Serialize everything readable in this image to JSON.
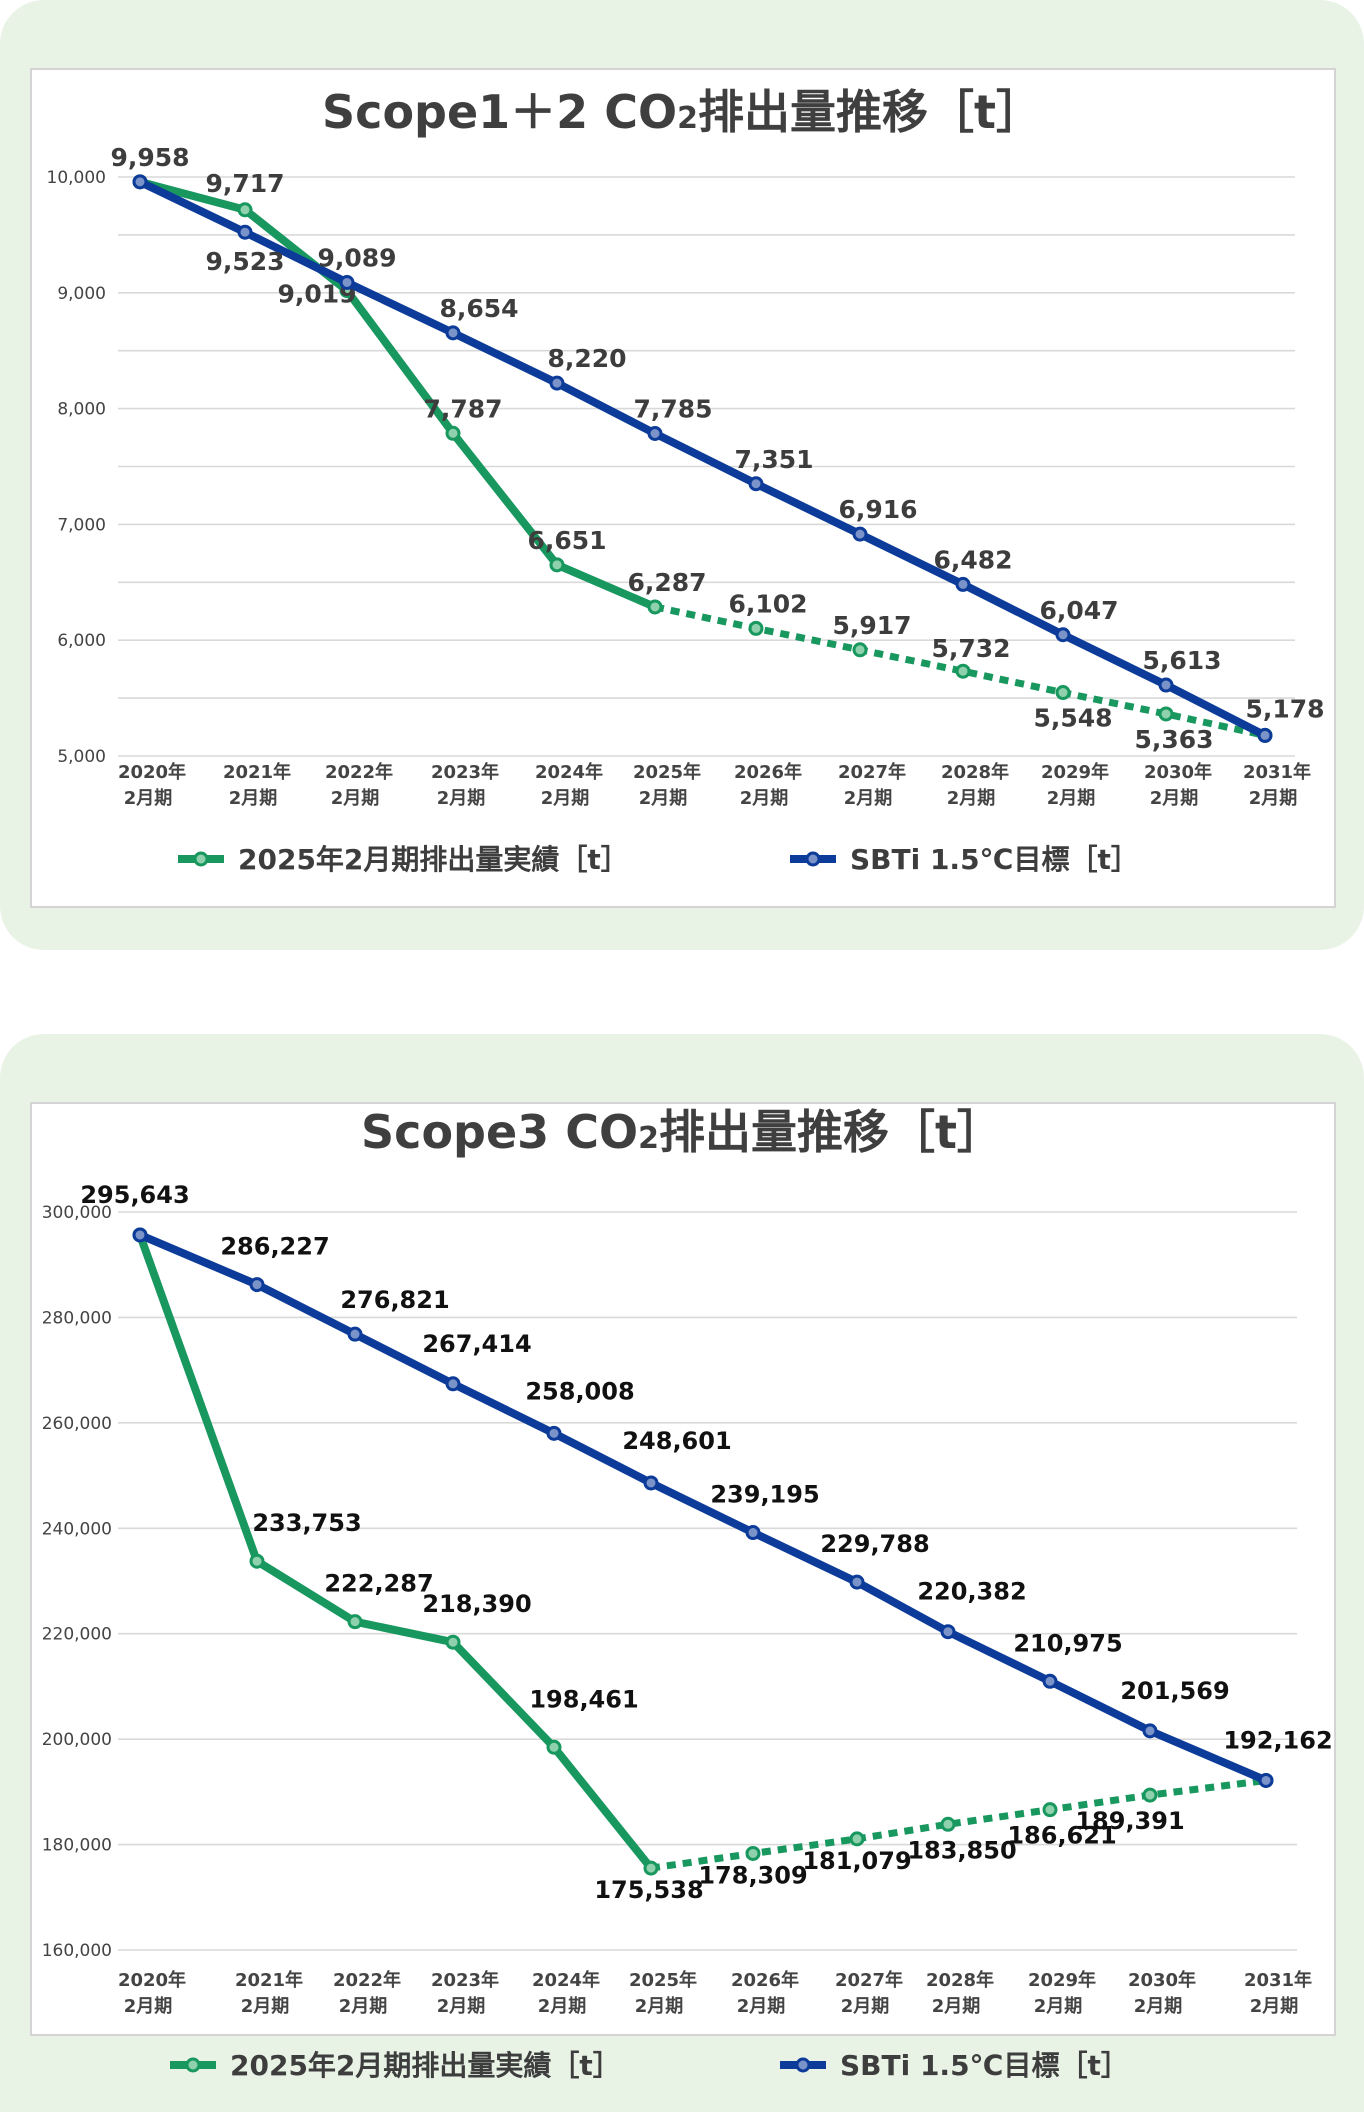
{
  "chart_data": [
    {
      "type": "line",
      "title": "Scope1＋2 CO",
      "title_sub": "2",
      "title_rest": "排出量推移［t］",
      "categories": [
        [
          "2020年",
          "2月期"
        ],
        [
          "2021年",
          "2月期"
        ],
        [
          "2022年",
          "2月期"
        ],
        [
          "2023年",
          "2月期"
        ],
        [
          "2024年",
          "2月期"
        ],
        [
          "2025年",
          "2月期"
        ],
        [
          "2026年",
          "2月期"
        ],
        [
          "2027年",
          "2月期"
        ],
        [
          "2028年",
          "2月期"
        ],
        [
          "2029年",
          "2月期"
        ],
        [
          "2030年",
          "2月期"
        ],
        [
          "2031年",
          "2月期"
        ]
      ],
      "ylim": [
        5000,
        10000
      ],
      "yticks": [
        "5,000",
        "6,000",
        "7,000",
        "8,000",
        "9,000",
        "10,000"
      ],
      "grid": true,
      "legend_position": "bottom",
      "series": [
        {
          "name": "2025年2月期排出量実績［t］",
          "color": "#18985f",
          "values": [
            9958,
            9717,
            9019,
            7787,
            6651,
            6287,
            6102,
            5917,
            5732,
            5548,
            5363,
            5178
          ],
          "labels": [
            "9,958",
            "9,717",
            "9,019",
            "7,787",
            "6,651",
            "6,287",
            "6,102",
            "5,917",
            "5,732",
            "5,548",
            "5,363",
            null
          ],
          "solid_until_index": 5
        },
        {
          "name": "SBTi 1.5℃目標［t］",
          "color": "#0d3b99",
          "values": [
            9958,
            9523,
            9089,
            8654,
            8220,
            7785,
            7351,
            6916,
            6482,
            6047,
            5613,
            5178
          ],
          "labels": [
            null,
            "9,523",
            "9,089",
            "8,654",
            "8,220",
            "7,785",
            "7,351",
            "6,916",
            "6,482",
            "6,047",
            "5,613",
            "5,178"
          ],
          "solid_until_index": 11
        }
      ]
    },
    {
      "type": "line",
      "title": "Scope3 CO",
      "title_sub": "2",
      "title_rest": "排出量推移［t］",
      "categories": [
        [
          "2020年",
          "2月期"
        ],
        [
          "2021年",
          "2月期"
        ],
        [
          "2022年",
          "2月期"
        ],
        [
          "2023年",
          "2月期"
        ],
        [
          "2024年",
          "2月期"
        ],
        [
          "2025年",
          "2月期"
        ],
        [
          "2026年",
          "2月期"
        ],
        [
          "2027年",
          "2月期"
        ],
        [
          "2028年",
          "2月期"
        ],
        [
          "2029年",
          "2月期"
        ],
        [
          "2030年",
          "2月期"
        ],
        [
          "2031年",
          "2月期"
        ]
      ],
      "ylim": [
        160000,
        300000
      ],
      "yticks": [
        "160,000",
        "180,000",
        "200,000",
        "220,000",
        "240,000",
        "260,000",
        "280,000",
        "300,000"
      ],
      "grid": true,
      "legend_position": "bottom",
      "series": [
        {
          "name": "2025年2月期排出量実績［t］",
          "color": "#18985f",
          "values": [
            295643,
            233753,
            222287,
            218390,
            198461,
            175538,
            178309,
            181079,
            183850,
            186621,
            189391,
            192162
          ],
          "labels": [
            null,
            "233,753",
            "222,287",
            "218,390",
            "198,461",
            "175,538",
            "178,309",
            "181,079",
            "183,850",
            "186,621",
            "189,391",
            null
          ],
          "solid_until_index": 5
        },
        {
          "name": "SBTi 1.5℃目標［t］",
          "color": "#0d3b99",
          "values": [
            295643,
            286227,
            276821,
            267414,
            258008,
            248601,
            239195,
            229788,
            220382,
            210975,
            201569,
            192162
          ],
          "labels": [
            "295,643",
            "286,227",
            "276,821",
            "267,414",
            "258,008",
            "248,601",
            "239,195",
            "229,788",
            "220,382",
            "210,975",
            "201,569",
            "192,162"
          ],
          "solid_until_index": 11
        }
      ]
    }
  ]
}
